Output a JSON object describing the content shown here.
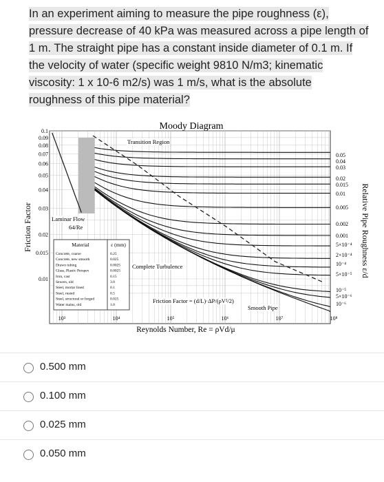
{
  "question": {
    "lines": [
      "In an experiment aiming to measure the pipe roughness (ε),",
      "pressure decrease of 40 kPa was measured across a pipe length of",
      "1 m. The straight pipe has a constant inside diameter of 0.1 m. If",
      "the velocity of water (specific weight 9810 N/m3; kinematic",
      "viscosity: 1 x 10-6 m2/s) was 1 m/s, what is the absolute",
      "roughness of this pipe material?"
    ]
  },
  "diagram": {
    "title": "Moody Diagram",
    "y_label": "Friction Factor",
    "x_label": "Reynolds Number, Re = ρVd/μ",
    "right_label": "Relative Pipe Roughness ε/d",
    "y_ticks": [
      "0.1",
      "0.09",
      "0.08",
      "0.07",
      "0.06",
      "0.05",
      "0.04",
      "0.03",
      "0.02",
      "0.015",
      "0.01"
    ],
    "x_ticks": [
      "10³",
      "10⁴",
      "10⁵",
      "10⁶",
      "10⁷",
      "10⁸"
    ],
    "right_ticks": [
      "0.05",
      "0.04",
      "0.03",
      "0.02",
      "0.015",
      "0.01",
      "0.005",
      "0.002",
      "0.001",
      "5×10⁻⁴",
      "2×10⁻⁴",
      "10⁻⁴",
      "5×10⁻⁵",
      "10⁻⁵",
      "5×10⁻⁶",
      "10⁻⁶"
    ],
    "labels": {
      "transition": "Transition Region",
      "turbulence": "Complete Turbulence",
      "laminar": "Laminar Flow",
      "laminar_eq": "64/Re",
      "smooth": "Smooth Pipe",
      "friction_eq": "Friction Factor = (d/L)·ΔP/(ρV²/2)"
    },
    "table": {
      "header": [
        "Material",
        "ε (mm)"
      ],
      "rows": [
        [
          "Concrete, coarse",
          "0.25"
        ],
        [
          "Concrete, new smooth",
          "0.025"
        ],
        [
          "Drawn tubing",
          "0.0025"
        ],
        [
          "Glass, Plastic Perspex",
          "0.0025"
        ],
        [
          "Iron, cast",
          "0.15"
        ],
        [
          "Sewers, old",
          "3.0"
        ],
        [
          "Steel, mortar lined",
          "0.1"
        ],
        [
          "Steel, rusted",
          "0.5"
        ],
        [
          "Steel, structural or forged",
          "0.025"
        ],
        [
          "Water mains, old",
          "1.0"
        ]
      ]
    }
  },
  "options": [
    "0.500 mm",
    "0.100 mm",
    "0.025 mm",
    "0.050 mm"
  ]
}
